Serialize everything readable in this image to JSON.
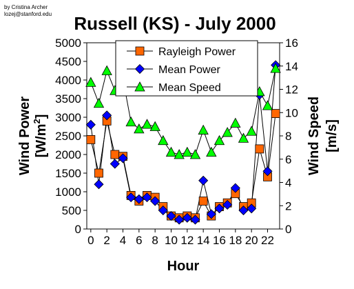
{
  "credit": [
    "by Cristina Archer",
    "lozej@stanford.edu"
  ],
  "chart_data": {
    "type": "line",
    "title": "Russell (KS) - July 2000",
    "xlabel": "Hour",
    "ylabel_left_main": "Wind Power",
    "ylabel_left_unit_prefix": "[W/m",
    "ylabel_left_unit_sup": "2",
    "ylabel_left_unit_suffix": "]",
    "ylabel_right_main": "Wind Speed",
    "ylabel_right_unit": "[m/s]",
    "xlim": [
      -0.5,
      23.5
    ],
    "ylim_left": [
      0,
      5000
    ],
    "ylim_right": [
      0,
      16
    ],
    "x_ticks": [
      0,
      2,
      4,
      6,
      8,
      10,
      12,
      14,
      16,
      18,
      20,
      22
    ],
    "y_left_ticks": [
      0,
      500,
      1000,
      1500,
      2000,
      2500,
      3000,
      3500,
      4000,
      4500,
      5000
    ],
    "y_right_ticks": [
      0,
      2,
      4,
      6,
      8,
      10,
      12,
      14,
      16
    ],
    "grid": false,
    "legend_position": "top-center",
    "x": [
      0,
      1,
      2,
      3,
      4,
      5,
      6,
      7,
      8,
      9,
      10,
      11,
      12,
      13,
      14,
      15,
      16,
      17,
      18,
      19,
      20,
      21,
      22,
      23
    ],
    "series": [
      {
        "name": "Rayleigh Power",
        "axis": "left",
        "marker": "square",
        "color": "#ff6600",
        "values": [
          2400,
          1500,
          2900,
          2000,
          1950,
          900,
          750,
          900,
          850,
          600,
          350,
          300,
          350,
          300,
          750,
          350,
          600,
          700,
          950,
          600,
          700,
          2150,
          1400,
          3100
        ]
      },
      {
        "name": "Mean Power",
        "axis": "left",
        "marker": "diamond",
        "color": "#0000ff",
        "values": [
          2800,
          1200,
          3050,
          1750,
          1900,
          850,
          800,
          850,
          750,
          500,
          350,
          250,
          300,
          250,
          1300,
          400,
          550,
          650,
          1100,
          500,
          550,
          3600,
          1550,
          4400
        ]
      },
      {
        "name": "Mean Speed",
        "axis": "right",
        "marker": "triangle",
        "color": "#00ff00",
        "values": [
          12.6,
          10.8,
          13.6,
          11.9,
          12.9,
          9.2,
          8.6,
          9.0,
          8.8,
          7.6,
          6.6,
          6.4,
          6.6,
          6.4,
          8.5,
          6.6,
          7.6,
          8.3,
          9.1,
          7.8,
          8.4,
          11.8,
          10.6,
          13.8
        ]
      }
    ]
  }
}
